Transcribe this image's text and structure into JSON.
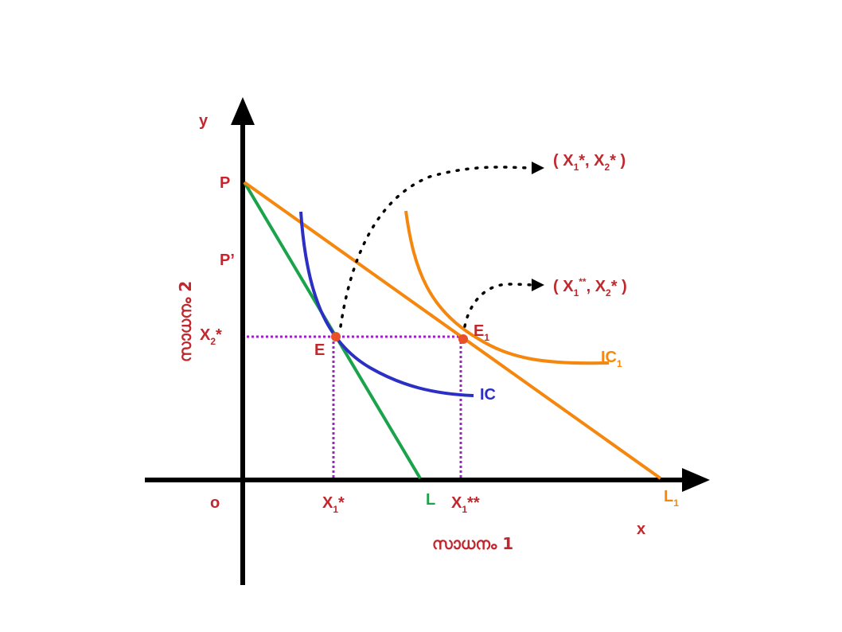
{
  "diagram": {
    "colors": {
      "axis": "#000000",
      "label_red": "#c0282d",
      "budget_original": "#1aa34a",
      "budget_new": "#f5870f",
      "indifference_ic": "#2b2fc4",
      "indifference_ic1": "#f5870f",
      "guides": "#a020c8",
      "points": "#e8502a",
      "arrows": "#000000"
    },
    "axes": {
      "y_label": "y",
      "x_label": "x",
      "origin_label": "o",
      "x_title": "സാധനം 1",
      "y_title": "സാധനം 2"
    },
    "y_axis_labels": {
      "p": "P",
      "p_prime": "P’",
      "x2_main": "X",
      "x2_sub": "2",
      "x2_sup": "*"
    },
    "x_axis_labels": {
      "x1_star_main": "X",
      "x1_star_sub": "1",
      "x1_star_sup": "*",
      "l": "L",
      "x1_dstar_main": "X",
      "x1_dstar_sub": "1",
      "x1_dstar_sup": "**",
      "l1_main": "L",
      "l1_sub": "1"
    },
    "curve_labels": {
      "ic": "IC",
      "ic1_main": "IC",
      "ic1_sub": "1"
    },
    "points": {
      "e": "E",
      "e1_main": "E",
      "e1_sub": "1"
    },
    "annotations": {
      "first": {
        "open": "( X",
        "sub1": "1",
        "star1": "*",
        "mid": ", X",
        "sub2": "2",
        "star2": "*",
        "close": " )"
      },
      "second": {
        "open": "( X",
        "sub1": "1",
        "star1": "**",
        "mid": ", X",
        "sub2": "2",
        "star2": "*",
        "close": " )"
      }
    }
  }
}
